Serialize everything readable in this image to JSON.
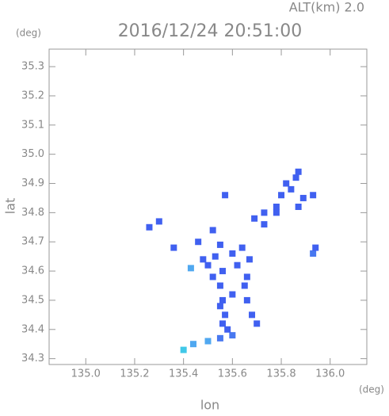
{
  "chart_data": {
    "type": "scatter",
    "title": "2016/12/24 20:51:00",
    "altitude_label": "ALT(km) 2.0",
    "y_unit": "(deg)",
    "x_unit": "(deg)",
    "x_label": "lon",
    "y_label": "lat",
    "xlim": [
      134.85,
      136.15
    ],
    "ylim": [
      34.28,
      35.36
    ],
    "xticks": [
      {
        "value": 135.0,
        "label": "135.0"
      },
      135.2,
      135.4,
      135.6,
      135.8,
      {
        "value": 136.0,
        "label": "136.0"
      }
    ],
    "yticks": [
      34.3,
      34.4,
      34.5,
      34.6,
      34.7,
      34.8,
      34.9,
      {
        "value": 35.0,
        "label": "35.0"
      },
      35.1,
      35.2,
      35.3
    ],
    "x": [
      135.4,
      135.44,
      135.5,
      135.55,
      135.6,
      135.58,
      135.56,
      135.57,
      135.55,
      135.56,
      135.6,
      135.55,
      135.52,
      135.56,
      135.5,
      135.48,
      135.53,
      135.6,
      135.62,
      135.65,
      135.66,
      135.68,
      135.7,
      135.66,
      135.67,
      135.64,
      135.46,
      135.43,
      135.36,
      135.26,
      135.3,
      135.93,
      135.94,
      135.69,
      135.73,
      135.78,
      135.8,
      135.84,
      135.82,
      135.86,
      135.87,
      135.89,
      135.93,
      135.87,
      135.78,
      135.73,
      135.57,
      135.52,
      135.55
    ],
    "values": [
      34.33,
      34.35,
      34.36,
      34.37,
      34.38,
      34.4,
      34.42,
      34.45,
      34.48,
      34.5,
      34.52,
      34.55,
      34.58,
      34.6,
      34.62,
      34.64,
      34.65,
      34.66,
      34.62,
      34.55,
      34.5,
      34.45,
      34.42,
      34.58,
      34.64,
      34.68,
      34.7,
      34.61,
      34.68,
      34.75,
      34.77,
      34.66,
      34.68,
      34.78,
      34.8,
      34.82,
      34.86,
      34.88,
      34.9,
      34.92,
      34.94,
      34.85,
      34.86,
      34.82,
      34.8,
      34.76,
      34.86,
      34.74,
      34.69
    ],
    "colors": [
      "#40c8e8",
      "#50a8f0",
      "#50a8f0",
      "#4878f0",
      "#4878f0",
      "#4060f0",
      "#4060f0",
      "#4060f0",
      "#4060f0",
      "#4060f0",
      "#4060f0",
      "#4060f0",
      "#4060f0",
      "#4060f0",
      "#4060f0",
      "#4060f0",
      "#4060f0",
      "#4060f0",
      "#4060f0",
      "#4060f0",
      "#4060f0",
      "#4060f0",
      "#4060f0",
      "#4060f0",
      "#4060f0",
      "#4060f0",
      "#4060f0",
      "#50a8f0",
      "#4060f0",
      "#4060f0",
      "#4060f0",
      "#4878f0",
      "#4060f0",
      "#4060f0",
      "#4060f0",
      "#4060f0",
      "#4060f0",
      "#4060f0",
      "#4060f0",
      "#4060f0",
      "#4060f0",
      "#4060f0",
      "#4060f0",
      "#4060f0",
      "#4060f0",
      "#4060f0",
      "#4060f0",
      "#4060f0",
      "#4060f0"
    ]
  }
}
